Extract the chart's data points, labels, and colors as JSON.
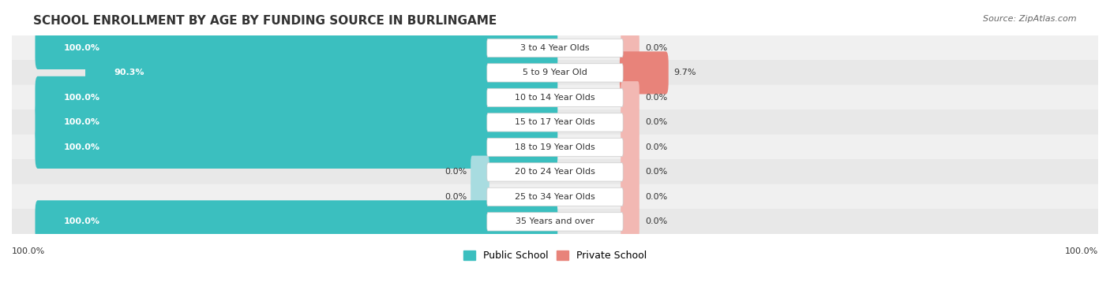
{
  "title": "SCHOOL ENROLLMENT BY AGE BY FUNDING SOURCE IN BURLINGAME",
  "source": "Source: ZipAtlas.com",
  "categories": [
    "3 to 4 Year Olds",
    "5 to 9 Year Old",
    "10 to 14 Year Olds",
    "15 to 17 Year Olds",
    "18 to 19 Year Olds",
    "20 to 24 Year Olds",
    "25 to 34 Year Olds",
    "35 Years and over"
  ],
  "public_values": [
    100.0,
    90.3,
    100.0,
    100.0,
    100.0,
    0.0,
    0.0,
    100.0
  ],
  "private_values": [
    0.0,
    9.7,
    0.0,
    0.0,
    0.0,
    0.0,
    0.0,
    0.0
  ],
  "public_color": "#3BBFBF",
  "private_color": "#E8837A",
  "private_zero_color": "#F2B8B3",
  "public_zero_color": "#A8DCE0",
  "label_color_white": "#FFFFFF",
  "label_color_dark": "#333333",
  "legend_public": "Public School",
  "legend_private": "Private School",
  "x_left_label": "100.0%",
  "x_right_label": "100.0%",
  "title_fontsize": 11,
  "source_fontsize": 8,
  "bar_label_fontsize": 8,
  "cat_label_fontsize": 8,
  "legend_fontsize": 9
}
